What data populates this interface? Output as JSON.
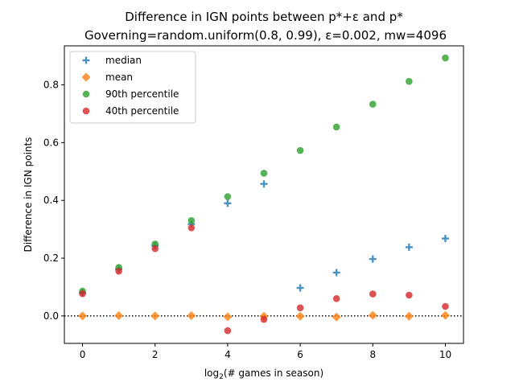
{
  "chart_data": {
    "type": "scatter",
    "title": "Difference in IGN points between p*+ε and p*",
    "subtitle": "Governing=random.uniform(0.8, 0.99), ε=0.002, mw=4096",
    "xlabel_prefix": "log",
    "xlabel_sub": "2",
    "xlabel_suffix": "(# games in season)",
    "ylabel": "Difference in IGN points",
    "xlim": [
      -0.5,
      10.5
    ],
    "ylim": [
      -0.095,
      0.935
    ],
    "xticks": [
      0,
      2,
      4,
      6,
      8,
      10
    ],
    "yticks": [
      0.0,
      0.2,
      0.4,
      0.6,
      0.8
    ],
    "ytick_labels": [
      "0.0",
      "0.2",
      "0.4",
      "0.6",
      "0.8"
    ],
    "reference_line": {
      "y": 0.0,
      "style": "dotted",
      "color": "#000000"
    },
    "legend_position": "upper-left",
    "grid": false,
    "x": [
      0,
      1,
      2,
      3,
      4,
      5,
      6,
      7,
      8,
      9,
      10
    ],
    "series": [
      {
        "name": "median",
        "marker": "plus",
        "color": "#1f77b4",
        "values": [
          0.08,
          0.162,
          0.243,
          0.318,
          0.39,
          0.457,
          0.097,
          0.15,
          0.197,
          0.238,
          0.268
        ]
      },
      {
        "name": "mean",
        "marker": "diamond",
        "color": "#ff7f0e",
        "values": [
          0.0,
          0.001,
          0.0,
          0.001,
          -0.003,
          -0.001,
          -0.001,
          -0.004,
          0.002,
          -0.001,
          0.002
        ]
      },
      {
        "name": "90th percentile",
        "marker": "circle",
        "color": "#2ca02c",
        "values": [
          0.086,
          0.168,
          0.249,
          0.33,
          0.413,
          0.494,
          0.573,
          0.654,
          0.733,
          0.812,
          0.893
        ]
      },
      {
        "name": "40th percentile",
        "marker": "circle",
        "color": "#d62728",
        "values": [
          0.077,
          0.155,
          0.233,
          0.305,
          -0.051,
          -0.012,
          0.028,
          0.06,
          0.076,
          0.072,
          0.033
        ]
      }
    ]
  }
}
